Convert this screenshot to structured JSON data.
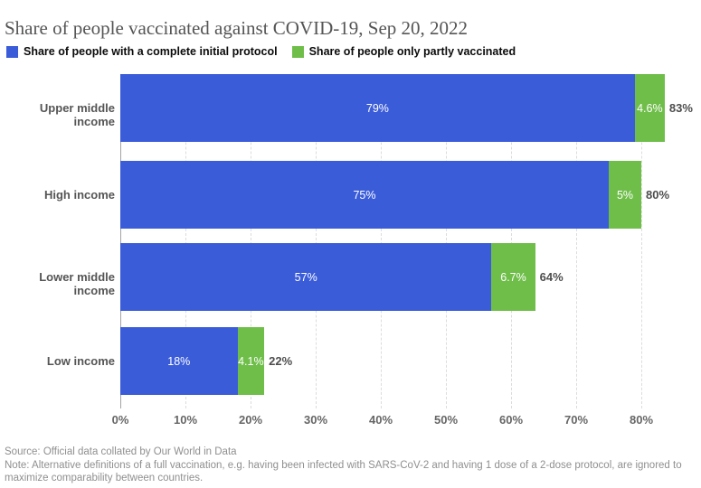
{
  "title": "Share of people vaccinated against COVID-19, Sep 20, 2022",
  "legend": [
    {
      "label": "Share of people with a complete initial protocol",
      "color": "#3b5cd9"
    },
    {
      "label": "Share of people only partly vaccinated",
      "color": "#6fbe4a"
    }
  ],
  "chart_data": {
    "type": "bar",
    "orientation": "horizontal",
    "stacked": true,
    "title": "Share of people vaccinated against COVID-19, Sep 20, 2022",
    "categories": [
      "Upper middle income",
      "High income",
      "Lower middle income",
      "Low income"
    ],
    "series": [
      {
        "name": "Share of people with a complete initial protocol",
        "color": "#3b5cd9",
        "values": [
          79,
          75,
          57,
          18
        ],
        "labels": [
          "79%",
          "75%",
          "57%",
          "18%"
        ]
      },
      {
        "name": "Share of people only partly vaccinated",
        "color": "#6fbe4a",
        "values": [
          4.6,
          5,
          6.7,
          4.1
        ],
        "labels": [
          "4.6%",
          "5%",
          "6.7%",
          "4.1%"
        ]
      }
    ],
    "totals": [
      "83%",
      "80%",
      "64%",
      "22%"
    ],
    "x_ticks": [
      "0%",
      "10%",
      "20%",
      "30%",
      "40%",
      "50%",
      "60%",
      "70%",
      "80%"
    ],
    "x_tick_values": [
      0,
      10,
      20,
      30,
      40,
      50,
      60,
      70,
      80
    ],
    "xlim": [
      0,
      88
    ],
    "grid": "dashed-vertical",
    "legend_position": "top"
  },
  "footer": {
    "source": "Source: Official data collated by Our World in Data",
    "note": "Note: Alternative definitions of a full vaccination, e.g. having been infected with SARS-CoV-2 and having 1 dose of a 2-dose protocol, are ignored to maximize comparability between countries."
  }
}
